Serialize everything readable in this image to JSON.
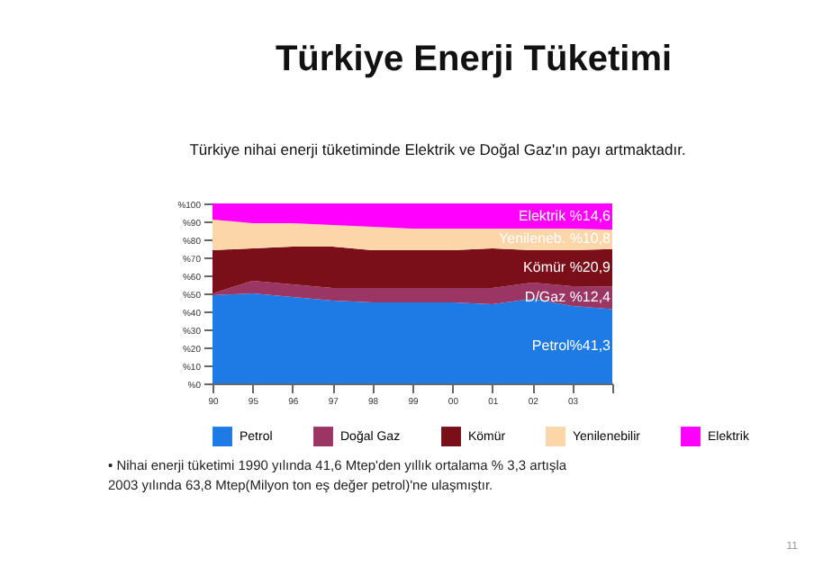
{
  "chart_data": {
    "type": "area",
    "stacked": true,
    "title": "Türkiye Enerji Tüketimi",
    "subtitle": "Türkiye nihai enerji tüketiminde Elektrik ve Doğal Gaz'ın payı artmaktadır.",
    "categories": [
      "90",
      "95",
      "96",
      "97",
      "98",
      "99",
      "00",
      "01",
      "02",
      "03",
      null
    ],
    "series": [
      {
        "name": "Petrol",
        "color": "#1e7be6",
        "values": [
          49,
          50,
          48,
          46,
          45,
          45,
          45,
          44,
          47,
          43,
          41.3
        ]
      },
      {
        "name": "Doğal Gaz",
        "color": "#9b3563",
        "values": [
          1,
          7,
          7,
          7,
          8,
          8,
          8,
          9,
          9,
          11,
          12.4
        ]
      },
      {
        "name": "Kömür",
        "color": "#7a0f1a",
        "values": [
          24,
          18,
          21,
          23,
          21,
          21,
          21,
          22,
          18,
          20,
          20.9
        ]
      },
      {
        "name": "Yenilenebilir",
        "color": "#fcd5a8",
        "values": [
          17,
          14,
          13,
          12,
          13,
          12,
          12,
          11,
          12,
          12,
          10.8
        ]
      },
      {
        "name": "Elektrik",
        "color": "#ff00ff",
        "values": [
          9,
          11,
          11,
          12,
          13,
          14,
          14,
          14,
          14,
          14,
          14.6
        ]
      }
    ],
    "ylim": [
      0,
      100
    ],
    "yticks": [
      {
        "value": 0,
        "label": "%0"
      },
      {
        "value": 10,
        "label": "%10"
      },
      {
        "value": 20,
        "label": "%20"
      },
      {
        "value": 30,
        "label": "%30"
      },
      {
        "value": 40,
        "label": "%40"
      },
      {
        "value": 50,
        "label": "%50"
      },
      {
        "value": 60,
        "label": "%60"
      },
      {
        "value": 70,
        "label": "%70"
      },
      {
        "value": 80,
        "label": "%80"
      },
      {
        "value": 90,
        "label": "%90"
      },
      {
        "value": 100,
        "label": "%100"
      }
    ],
    "grid": false,
    "legend": "bottom",
    "annotations": [
      "Elektrik %14,6",
      "Yenileneb. %10,8",
      "Kömür %20,9",
      "D/Gaz %12,4",
      "Petrol%41,3",
      "• Nihai enerji tüketimi 1990 yılında 41,6 Mtep'den yıllık ortalama % 3,3 artışla\n   2003 yılında 63,8 Mtep(Milyon ton eş değer petrol)'ne ulaşmıştır.",
      "11"
    ]
  }
}
